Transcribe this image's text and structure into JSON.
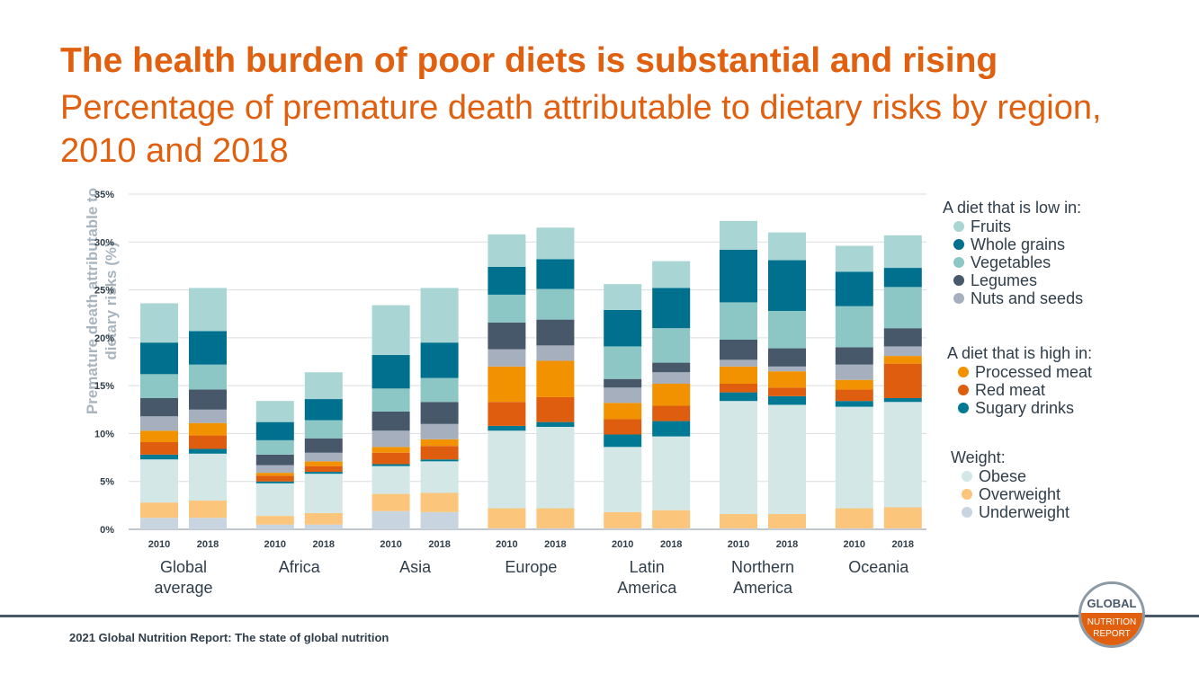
{
  "slide": {
    "title": "The health burden of poor diets is substantial and rising",
    "subtitle": "Percentage of premature death attributable to dietary risks by region, 2010 and 2018",
    "footer": "2021 Global Nutrition Report: The state of global nutrition",
    "logo": {
      "line1": "GLOBAL",
      "line2": "NUTRITION",
      "line3": "REPORT"
    }
  },
  "legend": {
    "groups": [
      {
        "heading": "A diet that is low in:",
        "items": [
          {
            "label": "Fruits",
            "color": "#a9d5d4"
          },
          {
            "label": "Whole grains",
            "color": "#00708f"
          },
          {
            "label": "Vegetables",
            "color": "#8cc7c5"
          },
          {
            "label": "Legumes",
            "color": "#47586a"
          },
          {
            "label": "Nuts and seeds",
            "color": "#a6afbd"
          }
        ]
      },
      {
        "heading": "A diet that is high in:",
        "items": [
          {
            "label": "Processed meat",
            "color": "#f39200"
          },
          {
            "label": "Red meat",
            "color": "#de5d0f"
          },
          {
            "label": "Sugary drinks",
            "color": "#007a94"
          }
        ]
      },
      {
        "heading": "Weight:",
        "items": [
          {
            "label": "Obese",
            "color": "#d2e7e6"
          },
          {
            "label": "Overweight",
            "color": "#fbc57b"
          },
          {
            "label": "Underweight",
            "color": "#c8d5e1"
          }
        ]
      }
    ]
  },
  "chart_data": {
    "type": "bar",
    "stacked": true,
    "ylabel": "Premature death attributable to dietary risks (%)",
    "ylim": [
      0,
      35
    ],
    "yticks": [
      "0%",
      "5%",
      "10%",
      "15%",
      "20%",
      "25%",
      "30%",
      "35%"
    ],
    "grid": true,
    "legend_position": "right",
    "groups": [
      "Global average",
      "Africa",
      "Asia",
      "Europe",
      "Latin America",
      "Northern America",
      "Oceania"
    ],
    "years": [
      "2010",
      "2018"
    ],
    "categories": [
      "Global average 2010",
      "Global average 2018",
      "Africa 2010",
      "Africa 2018",
      "Asia 2010",
      "Asia 2018",
      "Europe 2010",
      "Europe 2018",
      "Latin America 2010",
      "Latin America 2018",
      "Northern America 2010",
      "Northern America 2018",
      "Oceania 2010",
      "Oceania 2018"
    ],
    "series": [
      {
        "name": "Underweight",
        "color": "#c8d5e1",
        "values": [
          1.2,
          1.2,
          0.5,
          0.5,
          1.9,
          1.8,
          0.1,
          0.1,
          0.1,
          0.1,
          0.1,
          0.1,
          0.1,
          0.1
        ]
      },
      {
        "name": "Overweight",
        "color": "#fbc57b",
        "values": [
          1.6,
          1.8,
          0.9,
          1.2,
          1.8,
          2.0,
          2.1,
          2.1,
          1.7,
          1.9,
          1.5,
          1.5,
          2.1,
          2.2
        ]
      },
      {
        "name": "Obese",
        "color": "#d2e7e6",
        "values": [
          4.5,
          4.9,
          3.4,
          4.1,
          2.9,
          3.3,
          8.1,
          8.5,
          6.8,
          7.7,
          11.8,
          11.4,
          10.6,
          11.0
        ]
      },
      {
        "name": "Sugary drinks",
        "color": "#007a94",
        "values": [
          0.5,
          0.5,
          0.2,
          0.2,
          0.2,
          0.2,
          0.5,
          0.5,
          1.3,
          1.6,
          0.9,
          0.9,
          0.6,
          0.4
        ]
      },
      {
        "name": "Red meat",
        "color": "#de5d0f",
        "values": [
          1.3,
          1.4,
          0.6,
          0.6,
          1.2,
          1.4,
          2.5,
          2.6,
          1.6,
          1.6,
          0.9,
          0.9,
          1.2,
          3.6
        ]
      },
      {
        "name": "Processed meat",
        "color": "#f39200",
        "values": [
          1.2,
          1.3,
          0.3,
          0.5,
          0.6,
          0.7,
          3.7,
          3.8,
          1.7,
          2.3,
          1.8,
          1.7,
          1.0,
          0.8
        ]
      },
      {
        "name": "Nuts and seeds",
        "color": "#a6afbd",
        "values": [
          1.5,
          1.4,
          0.8,
          0.9,
          1.7,
          1.6,
          1.8,
          1.6,
          1.6,
          1.2,
          0.7,
          0.5,
          1.6,
          1.0
        ]
      },
      {
        "name": "Legumes",
        "color": "#47586a",
        "values": [
          1.9,
          2.1,
          1.1,
          1.5,
          2.0,
          2.3,
          2.8,
          2.7,
          0.9,
          1.0,
          2.1,
          1.9,
          1.8,
          1.9
        ]
      },
      {
        "name": "Vegetables",
        "color": "#8cc7c5",
        "values": [
          2.5,
          2.6,
          1.5,
          1.9,
          2.4,
          2.5,
          2.9,
          3.2,
          3.4,
          3.6,
          3.9,
          3.9,
          4.3,
          4.3
        ]
      },
      {
        "name": "Whole grains",
        "color": "#00708f",
        "values": [
          3.3,
          3.5,
          1.9,
          2.2,
          3.5,
          3.7,
          2.9,
          3.1,
          3.8,
          4.2,
          5.5,
          5.3,
          3.6,
          2.0
        ]
      },
      {
        "name": "Fruits",
        "color": "#a9d5d4",
        "values": [
          4.1,
          4.5,
          2.2,
          2.8,
          5.2,
          5.7,
          3.4,
          3.3,
          2.7,
          2.8,
          3.0,
          2.9,
          2.7,
          3.4
        ]
      }
    ]
  }
}
